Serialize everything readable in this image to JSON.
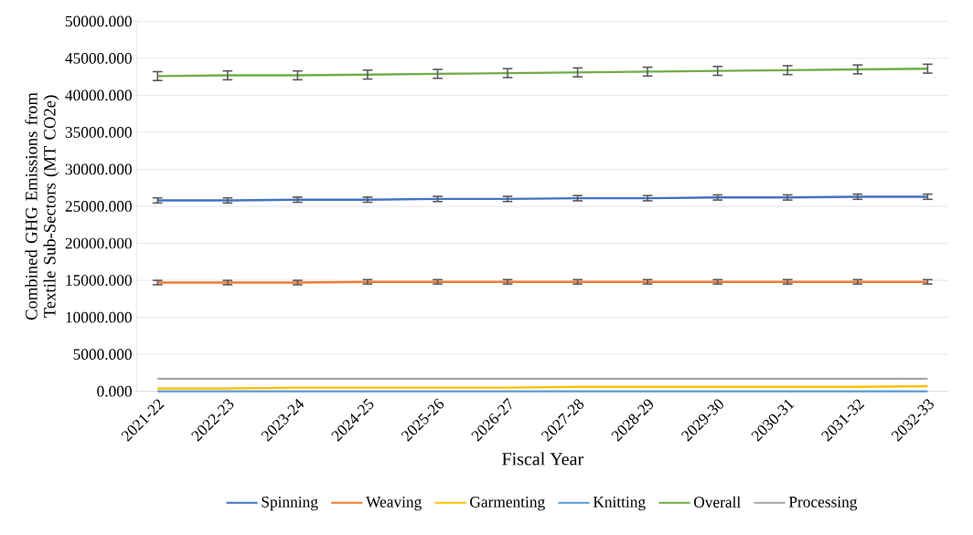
{
  "chart_data": {
    "type": "line",
    "xlabel": "Fiscal Year",
    "ylabel": "Combined GHG Emissions from Textile Sub-Sectors (MT CO2e)",
    "categories": [
      "2021-22",
      "2022-23",
      "2023-24",
      "2024-25",
      "2025-26",
      "2026-27",
      "2027-28",
      "2028-29",
      "2029-30",
      "2030-31",
      "2031-32",
      "2032-33"
    ],
    "series": [
      {
        "name": "Spinning",
        "color": "#4472c4",
        "values": [
          25800,
          25800,
          25900,
          25900,
          26000,
          26000,
          26100,
          26100,
          26200,
          26200,
          26300,
          26300
        ],
        "errors": [
          350,
          350,
          350,
          350,
          350,
          350,
          350,
          350,
          350,
          350,
          350,
          350
        ]
      },
      {
        "name": "Weaving",
        "color": "#ed7d31",
        "values": [
          14700,
          14700,
          14700,
          14800,
          14800,
          14800,
          14800,
          14800,
          14800,
          14800,
          14800,
          14800
        ],
        "errors": [
          300,
          300,
          300,
          300,
          300,
          300,
          300,
          300,
          300,
          300,
          300,
          300
        ]
      },
      {
        "name": "Garmenting",
        "color": "#ffc000",
        "values": [
          400,
          400,
          500,
          500,
          500,
          500,
          600,
          600,
          600,
          600,
          600,
          700
        ]
      },
      {
        "name": "Knitting",
        "color": "#5b9bd5",
        "values": [
          0,
          0,
          0,
          0,
          0,
          0,
          0,
          0,
          0,
          0,
          0,
          0
        ]
      },
      {
        "name": "Overall",
        "color": "#70ad47",
        "values": [
          42600,
          42700,
          42700,
          42800,
          42900,
          43000,
          43100,
          43200,
          43300,
          43400,
          43500,
          43600
        ],
        "errors": [
          600,
          600,
          600,
          600,
          600,
          600,
          600,
          600,
          600,
          600,
          600,
          600
        ]
      },
      {
        "name": "Processing",
        "color": "#a5a5a5",
        "values": [
          1700,
          1700,
          1700,
          1700,
          1700,
          1700,
          1700,
          1700,
          1700,
          1700,
          1700,
          1700
        ]
      }
    ],
    "ylim": [
      0,
      50000
    ],
    "yticks": [
      {
        "value": 0,
        "label": "0.000"
      },
      {
        "value": 5000,
        "label": "5000.000"
      },
      {
        "value": 10000,
        "label": "10000.000"
      },
      {
        "value": 15000,
        "label": "15000.000"
      },
      {
        "value": 20000,
        "label": "20000.000"
      },
      {
        "value": 25000,
        "label": "25000.000"
      },
      {
        "value": 30000,
        "label": "30000.000"
      },
      {
        "value": 35000,
        "label": "35000.000"
      },
      {
        "value": 40000,
        "label": "40000.000"
      },
      {
        "value": 45000,
        "label": "45000.000"
      },
      {
        "value": 50000,
        "label": "50000.000"
      }
    ],
    "grid": "y",
    "legend": "bottom",
    "marker": "none",
    "line_style": "solid"
  }
}
